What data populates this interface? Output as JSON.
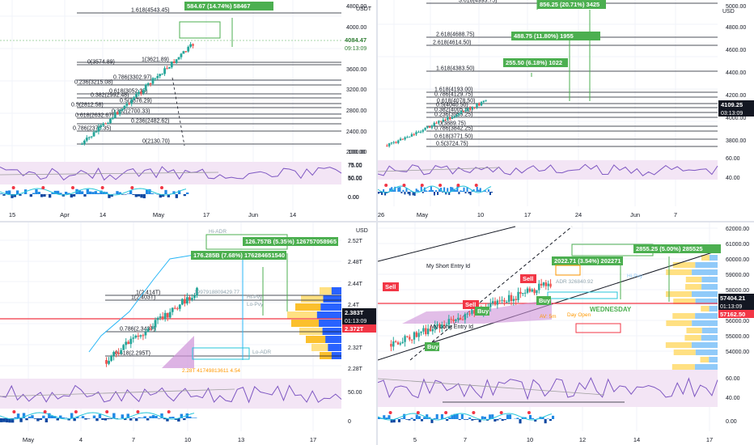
{
  "colors": {
    "background": "#ffffff",
    "grid": "#f0f3fa",
    "up": "#26a69a",
    "down": "#ef5350",
    "fib_line": "#131722",
    "green_box": "#4caf50",
    "price_label": "#131722",
    "red_label": "#f23645",
    "rsi": "#7e57c2",
    "rsi_band": "#e1bee7",
    "adr": "#29b6f6",
    "volume_profile_blue": "#2962ff",
    "volume_profile_yellow": "#fbc02d"
  },
  "panels": [
    {
      "id": "top-left",
      "price_axis": {
        "ticks": [
          "4000.00",
          "3600.00",
          "3200.00",
          "2800.00",
          "2400.00",
          "2000.00"
        ],
        "indicator_ticks": [
          "100.00",
          "75.00",
          "50.00",
          "0.00"
        ],
        "currency": "USDT",
        "current_price": "4084.47",
        "countdown": "09:13:09"
      },
      "time_axis": [
        "15",
        "Apr",
        "14",
        "May",
        "17",
        "Jun",
        "14"
      ],
      "measure_label": "584.67 (14.74%) 58467",
      "fib_labels": [
        "1.618(4543.45)",
        "0(3574.89)",
        "1(3621.89)",
        "0.786(3302.97)",
        "0.236(3215.08)",
        "0.618(3052.38)",
        "0.382(2992.48)",
        "0.5(2876.29)",
        "0.5(2812.58)",
        "0.382(2700.33)",
        "0.618(2632.67)",
        "0.236(2482.62)",
        "0.786(2376.35)",
        "0(2130.70)"
      ]
    },
    {
      "id": "top-right",
      "price_axis": {
        "ticks": [
          "5000.00",
          "4800.00",
          "4600.00",
          "4400.00",
          "4200.00",
          "4000.00",
          "3800.00"
        ],
        "indicator_ticks": [
          "60.00",
          "40.00"
        ],
        "currency": "USD",
        "current_price": "4109.25",
        "countdown": "03:13:09"
      },
      "time_axis": [
        "26",
        "May",
        "10",
        "17",
        "24",
        "Jun",
        "7"
      ],
      "measure_labels": [
        "856.25 (20.71%) 3425",
        "488.75 (11.80%) 1955",
        "255.50 (6.18%) 1022"
      ],
      "fib_labels": [
        "3.618(4993.75)",
        "2.618(4688.75)",
        "2.618(4614.50)",
        "1.618(4383.50)",
        "1.618(4193.00)",
        "0.786(4129.75)",
        "0.618(4078.50)",
        "0.5(4040.50)",
        "0.382(4005.50)",
        "0.236(3955.25)",
        "0(3889.75)",
        "0.786(3842.25)",
        "0.618(3771.50)",
        "0.5(3724.75)"
      ]
    },
    {
      "id": "bottom-left",
      "price_axis": {
        "ticks": [
          "2.52T",
          "2.48T",
          "2.44T",
          "2.4T",
          "2.36T",
          "2.32T",
          "2.28T"
        ],
        "indicator_ticks": [
          "50.00",
          "0"
        ],
        "currency": "USD",
        "current_price": "2.383T",
        "countdown": "01:13:09",
        "red_price": "2.372T"
      },
      "time_axis": [
        "May",
        "4",
        "7",
        "10",
        "13",
        "17"
      ],
      "measure_labels": [
        "126.757B (5.35%) 126757058965",
        "176.285B (7.68%) 176284651540"
      ],
      "fib_labels": [
        "1(2.414T)",
        "1(2.403T)",
        "0.786(2.343T)",
        "0.618(2.295T)"
      ],
      "misc_labels": [
        "Hi-ADR",
        "Hi-Pvy",
        "Lo-Pvy",
        "Lo-ADR",
        "1997918809429.77",
        "2.28T 41749813611 4.54"
      ]
    },
    {
      "id": "bottom-right",
      "price_axis": {
        "ticks": [
          "62000.00",
          "61000.00",
          "60000.00",
          "59000.00",
          "58000.00",
          "57000.00",
          "56000.00",
          "55000.00",
          "54000.00"
        ],
        "indicator_ticks": [
          "60.00",
          "40.00",
          "0.00"
        ],
        "currency": "",
        "current_price": "57404.21",
        "countdown": "01:13:09",
        "red_price": "57162.50"
      },
      "time_axis": [
        "5",
        "7",
        "10",
        "12",
        "14",
        "17"
      ],
      "measure_labels": [
        "2855.25 (5.00%) 285525",
        "2022.71 (3.54%) 202271"
      ],
      "misc_labels": [
        "My Short Entry Id",
        "My Long Entry Id",
        "Sell",
        "Sell",
        "Sell",
        "Buy",
        "Buy",
        "Buy",
        "ADR 326840.92",
        "Hi-Pvy",
        "WEDNESDAY",
        "Day Open",
        "AV: 5m"
      ]
    }
  ]
}
